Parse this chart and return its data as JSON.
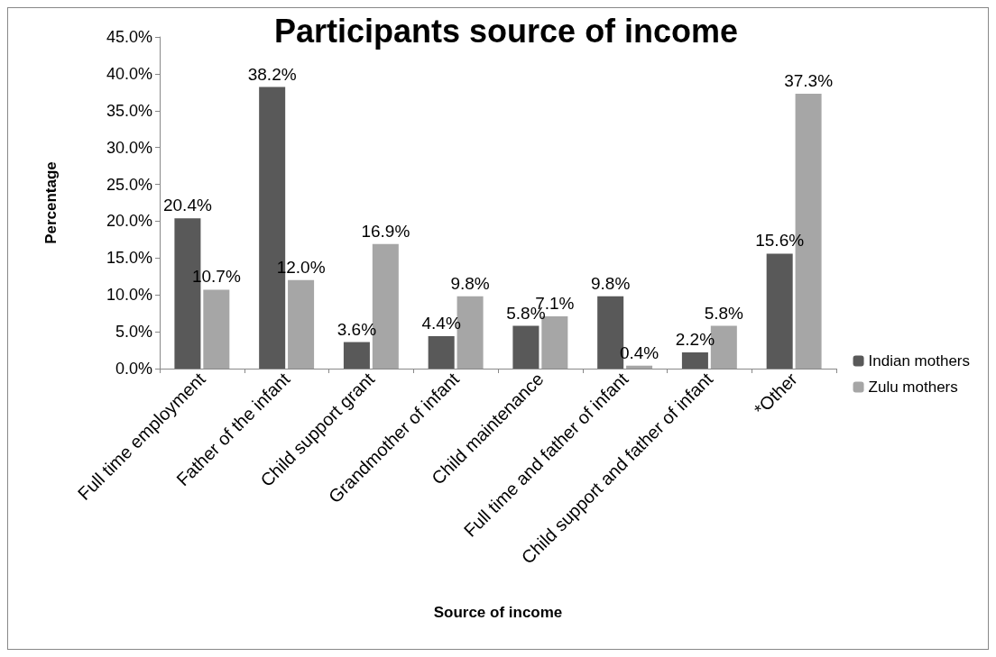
{
  "chart_data": {
    "type": "bar",
    "title": "Participants source of income",
    "xlabel": "Source of income",
    "ylabel": "Percentage",
    "categories": [
      "Full time employment",
      "Father of the infant",
      "Child support grant",
      "Grandmother of infant",
      "Child maintenance",
      "Full time and father of infant",
      "Child support and father of infant",
      "*Other"
    ],
    "series": [
      {
        "name": "Indian mothers",
        "color": "#595959",
        "values": [
          20.4,
          38.2,
          3.6,
          4.4,
          5.8,
          9.8,
          2.2,
          15.6
        ],
        "value_labels": [
          "20.4%",
          "38.2%",
          "3.6%",
          "4.4%",
          "5.8%",
          "9.8%",
          "2.2%",
          "15.6%"
        ]
      },
      {
        "name": "Zulu mothers",
        "color": "#a6a6a6",
        "values": [
          10.7,
          12.0,
          16.9,
          9.8,
          7.1,
          0.4,
          5.8,
          37.3
        ],
        "value_labels": [
          "10.7%",
          "12.0%",
          "16.9%",
          "9.8%",
          "7.1%",
          "0.4%",
          "5.8%",
          "37.3%"
        ]
      }
    ],
    "ylim": [
      0,
      45
    ],
    "yticks": [
      {
        "value": 0,
        "label": "0.0%"
      },
      {
        "value": 5,
        "label": "5.0%"
      },
      {
        "value": 10,
        "label": "10.0%"
      },
      {
        "value": 15,
        "label": "15.0%"
      },
      {
        "value": 20,
        "label": "20.0%"
      },
      {
        "value": 25,
        "label": "25.0%"
      },
      {
        "value": 30,
        "label": "30.0%"
      },
      {
        "value": 35,
        "label": "35.0%"
      },
      {
        "value": 40,
        "label": "40.0%"
      },
      {
        "value": 45,
        "label": "45.0%"
      }
    ],
    "grid": false,
    "legend": "bottom right"
  }
}
